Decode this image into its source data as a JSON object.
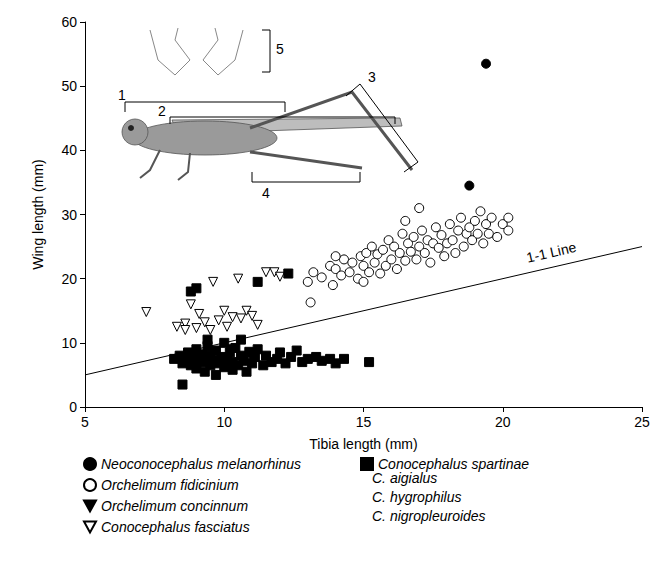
{
  "chart_data": {
    "type": "scatter",
    "x_label": "Tibia length (mm)",
    "y_label": "Wing length (mm)",
    "xlim": [
      5,
      25
    ],
    "xticks": [
      5,
      10,
      15,
      20,
      25
    ],
    "ylim": [
      0,
      60
    ],
    "yticks": [
      0,
      10,
      20,
      30,
      40,
      50,
      60
    ],
    "grid": false,
    "legend": "bottom",
    "series": [
      {
        "name": "Neoconocephalus melanorhinus",
        "color": "#000000",
        "marker": "circle",
        "points": [
          [
            19.4,
            53.5
          ],
          [
            18.8,
            34.5
          ]
        ]
      },
      {
        "name": "Orchelimum fidicinium",
        "color": "#000000",
        "marker": "open_circle",
        "points": [
          [
            13.0,
            19.5
          ],
          [
            13.2,
            21.0
          ],
          [
            13.1,
            16.3
          ],
          [
            13.5,
            20.2
          ],
          [
            13.8,
            22.0
          ],
          [
            13.9,
            19.0
          ],
          [
            14.0,
            21.5
          ],
          [
            14.2,
            20.5
          ],
          [
            14.3,
            23.0
          ],
          [
            14.5,
            21.0
          ],
          [
            14.6,
            22.5
          ],
          [
            14.8,
            20.0
          ],
          [
            14.9,
            23.5
          ],
          [
            15.0,
            22.0
          ],
          [
            15.1,
            24.0
          ],
          [
            15.2,
            21.0
          ],
          [
            15.3,
            25.0
          ],
          [
            15.4,
            22.5
          ],
          [
            15.5,
            23.8
          ],
          [
            15.6,
            20.8
          ],
          [
            15.7,
            24.5
          ],
          [
            15.8,
            22.0
          ],
          [
            15.9,
            26.0
          ],
          [
            16.0,
            23.0
          ],
          [
            16.1,
            25.0
          ],
          [
            16.2,
            21.5
          ],
          [
            16.3,
            24.0
          ],
          [
            16.4,
            27.0
          ],
          [
            16.5,
            22.8
          ],
          [
            16.6,
            25.5
          ],
          [
            16.7,
            24.2
          ],
          [
            16.8,
            26.5
          ],
          [
            16.9,
            23.0
          ],
          [
            17.0,
            25.0
          ],
          [
            17.1,
            27.5
          ],
          [
            17.2,
            24.0
          ],
          [
            17.3,
            26.0
          ],
          [
            17.4,
            22.5
          ],
          [
            17.5,
            25.5
          ],
          [
            17.6,
            28.0
          ],
          [
            17.7,
            24.8
          ],
          [
            17.8,
            26.8
          ],
          [
            17.9,
            23.5
          ],
          [
            18.0,
            25.5
          ],
          [
            18.1,
            28.5
          ],
          [
            18.2,
            26.0
          ],
          [
            18.3,
            24.0
          ],
          [
            18.4,
            27.5
          ],
          [
            18.5,
            29.5
          ],
          [
            18.6,
            25.0
          ],
          [
            18.7,
            27.0
          ],
          [
            18.8,
            28.0
          ],
          [
            18.9,
            26.0
          ],
          [
            19.0,
            29.0
          ],
          [
            19.1,
            27.0
          ],
          [
            19.2,
            30.5
          ],
          [
            19.3,
            25.5
          ],
          [
            19.4,
            28.5
          ],
          [
            19.5,
            27.0
          ],
          [
            19.6,
            29.5
          ],
          [
            19.8,
            26.5
          ],
          [
            20.0,
            28.5
          ],
          [
            20.2,
            27.5
          ],
          [
            20.2,
            29.5
          ],
          [
            17.0,
            31.0
          ],
          [
            16.5,
            29.0
          ],
          [
            14.0,
            23.5
          ],
          [
            15.0,
            19.5
          ]
        ]
      },
      {
        "name": "Orchelimum concinnum",
        "color": "#000000",
        "marker": "triangle_down",
        "points": [
          [
            9.5,
            8.0
          ],
          [
            10.2,
            9.0
          ],
          [
            11.0,
            7.5
          ],
          [
            9.0,
            6.5
          ]
        ]
      },
      {
        "name": "Conocephalus fasciatus",
        "color": "#000000",
        "marker": "open_triangle_down",
        "points": [
          [
            7.2,
            14.8
          ],
          [
            8.3,
            12.5
          ],
          [
            8.6,
            13.0
          ],
          [
            8.8,
            16.0
          ],
          [
            9.0,
            12.3
          ],
          [
            9.1,
            14.5
          ],
          [
            9.3,
            13.2
          ],
          [
            9.5,
            12.0
          ],
          [
            9.6,
            19.5
          ],
          [
            9.8,
            13.5
          ],
          [
            10.0,
            15.0
          ],
          [
            10.1,
            12.5
          ],
          [
            10.3,
            14.0
          ],
          [
            10.5,
            20.0
          ],
          [
            10.6,
            13.8
          ],
          [
            10.8,
            15.0
          ],
          [
            11.0,
            14.2
          ],
          [
            11.2,
            12.8
          ],
          [
            11.5,
            21.0
          ],
          [
            11.8,
            21.0
          ],
          [
            12.0,
            20.3
          ],
          [
            8.6,
            12.0
          ]
        ]
      },
      {
        "name": "Conocephalus spartinae",
        "color": "#000000",
        "marker": "square",
        "group_members": [
          "C. aigialus",
          "C. hygrophilus",
          "C. nigropleuroides"
        ],
        "points": [
          [
            8.2,
            7.5
          ],
          [
            8.4,
            8.0
          ],
          [
            8.5,
            6.8
          ],
          [
            8.6,
            7.2
          ],
          [
            8.7,
            8.5
          ],
          [
            8.8,
            6.5
          ],
          [
            8.9,
            7.8
          ],
          [
            9.0,
            9.0
          ],
          [
            9.0,
            6.0
          ],
          [
            9.1,
            7.5
          ],
          [
            9.2,
            8.2
          ],
          [
            9.3,
            5.5
          ],
          [
            9.3,
            7.0
          ],
          [
            9.4,
            9.5
          ],
          [
            9.5,
            6.5
          ],
          [
            9.5,
            8.0
          ],
          [
            9.6,
            7.3
          ],
          [
            9.7,
            5.0
          ],
          [
            9.7,
            8.8
          ],
          [
            9.8,
            6.8
          ],
          [
            9.9,
            7.8
          ],
          [
            10.0,
            10.0
          ],
          [
            10.0,
            6.2
          ],
          [
            10.1,
            7.5
          ],
          [
            10.2,
            8.5
          ],
          [
            10.3,
            5.8
          ],
          [
            10.3,
            7.0
          ],
          [
            10.4,
            9.2
          ],
          [
            10.5,
            6.5
          ],
          [
            10.6,
            8.0
          ],
          [
            10.7,
            7.2
          ],
          [
            10.8,
            5.5
          ],
          [
            10.9,
            8.6
          ],
          [
            11.0,
            6.8
          ],
          [
            11.1,
            7.8
          ],
          [
            11.2,
            9.0
          ],
          [
            11.4,
            6.5
          ],
          [
            11.5,
            8.0
          ],
          [
            11.7,
            7.0
          ],
          [
            11.9,
            7.5
          ],
          [
            12.0,
            8.5
          ],
          [
            12.2,
            6.8
          ],
          [
            12.4,
            7.8
          ],
          [
            12.6,
            8.8
          ],
          [
            12.8,
            7.0
          ],
          [
            13.0,
            7.5
          ],
          [
            13.3,
            7.8
          ],
          [
            13.5,
            7.2
          ],
          [
            13.8,
            7.5
          ],
          [
            14.0,
            6.8
          ],
          [
            14.3,
            7.5
          ],
          [
            15.2,
            7.0
          ],
          [
            9.4,
            10.5
          ],
          [
            10.6,
            10.5
          ],
          [
            8.8,
            18.0
          ],
          [
            9.0,
            18.5
          ],
          [
            11.2,
            19.5
          ],
          [
            12.3,
            20.8
          ],
          [
            8.5,
            3.5
          ]
        ]
      }
    ],
    "reference_line": {
      "label": "1-1 Line",
      "x": [
        5,
        25
      ],
      "y": [
        5,
        25
      ]
    },
    "inset_labels": [
      "1",
      "2",
      "3",
      "4",
      "5"
    ]
  }
}
